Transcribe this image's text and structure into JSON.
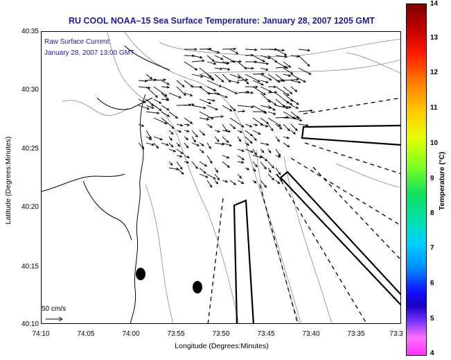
{
  "header": {
    "title": "RU COOL  NOAA–15  Sea Surface Temperature:  January 28, 2007 1205 GMT"
  },
  "overlay": {
    "line1": "Raw Surface Current:",
    "line2": "January 28, 2007 13:00 GMT"
  },
  "axes": {
    "xlabel": "Longitude (Degrees:Minutes)",
    "ylabel": "Latitude (Degrees:Minutes)",
    "xticks": [
      "74:10",
      "74:05",
      "74:00",
      "73:55",
      "73:50",
      "73:45",
      "73:40",
      "73:35",
      "73:3"
    ],
    "yticks": [
      "40:35",
      "40:30",
      "40:25",
      "40:20",
      "40:15",
      "40:10"
    ]
  },
  "scale_label": "50 cm/s",
  "colorbar": {
    "label": "Temperature (°C)",
    "ticks": [
      "14",
      "13",
      "12",
      "11",
      "10",
      "9",
      "8",
      "7",
      "6",
      "5",
      "4"
    ],
    "min": 4,
    "max": 14
  },
  "colors": {
    "title": "#1a1aa8",
    "coast": "#000000",
    "contours": "#808080"
  }
}
